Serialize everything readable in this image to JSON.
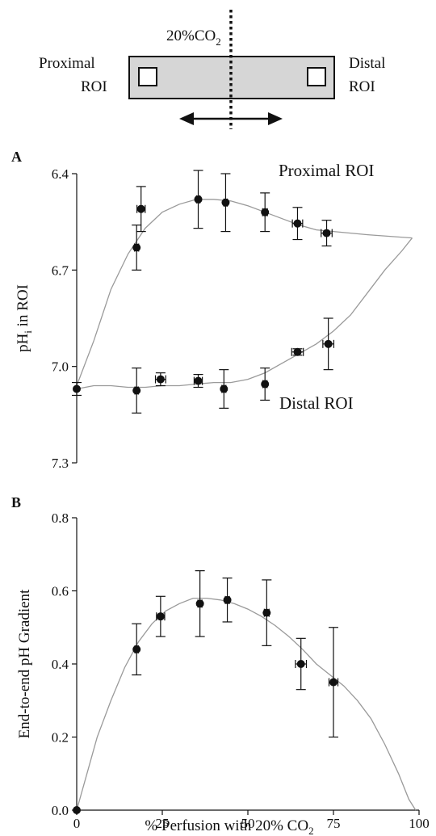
{
  "schematic": {
    "label_gas_main": "20%CO",
    "label_gas_sub": "2",
    "label_left_line1": "Proximal",
    "label_left_line2": "ROI",
    "label_right_line1": "Distal",
    "label_right_line2": "ROI"
  },
  "colors": {
    "curve": "#9a9a9a",
    "marker": "#111111",
    "chamber_fill": "#d6d6d6"
  },
  "chart_data": [
    {
      "panel": "A",
      "type": "scatter",
      "ylabel_main": "pH",
      "ylabel_sub": "i",
      "ylabel_rest": " in ROI",
      "ylim": [
        6.4,
        7.3
      ],
      "y_inverted": true,
      "xlim": [
        0,
        100
      ],
      "yticks": [
        6.4,
        6.7,
        7.0,
        7.3
      ],
      "ytick_labels": [
        "6.4",
        "6.7",
        "7.0",
        "7.3"
      ],
      "series": [
        {
          "name": "Proximal ROI",
          "points": [
            {
              "x": 17.5,
              "y": 6.63,
              "yerr": 0.07,
              "xerr": 0.6
            },
            {
              "x": 18.8,
              "y": 6.51,
              "yerr": 0.07,
              "xerr": 1.2
            },
            {
              "x": 35.5,
              "y": 6.48,
              "yerr": 0.09,
              "xerr": 0.5
            },
            {
              "x": 43.5,
              "y": 6.49,
              "yerr": 0.09,
              "xerr": 0.5
            },
            {
              "x": 55.0,
              "y": 6.52,
              "yerr": 0.06,
              "xerr": 0.7
            },
            {
              "x": 64.5,
              "y": 6.555,
              "yerr": 0.05,
              "xerr": 1.5
            },
            {
              "x": 73.0,
              "y": 6.585,
              "yerr": 0.04,
              "xerr": 1.6
            }
          ],
          "curve": [
            [
              0,
              7.06
            ],
            [
              5,
              6.92
            ],
            [
              10,
              6.76
            ],
            [
              15,
              6.65
            ],
            [
              20,
              6.57
            ],
            [
              25,
              6.52
            ],
            [
              30,
              6.495
            ],
            [
              35,
              6.48
            ],
            [
              40,
              6.48
            ],
            [
              45,
              6.485
            ],
            [
              50,
              6.5
            ],
            [
              55,
              6.52
            ],
            [
              60,
              6.54
            ],
            [
              65,
              6.56
            ],
            [
              70,
              6.575
            ],
            [
              75,
              6.58
            ],
            [
              85,
              6.59
            ],
            [
              98,
              6.6
            ]
          ]
        },
        {
          "name": "Distal ROI",
          "points": [
            {
              "x": 0.0,
              "y": 7.07,
              "yerr": 0.02,
              "xerr": 0.0
            },
            {
              "x": 17.5,
              "y": 7.075,
              "yerr": 0.07,
              "xerr": 0.5
            },
            {
              "x": 24.5,
              "y": 7.04,
              "yerr": 0.02,
              "xerr": 1.5
            },
            {
              "x": 35.5,
              "y": 7.045,
              "yerr": 0.02,
              "xerr": 1.2
            },
            {
              "x": 43.0,
              "y": 7.07,
              "yerr": 0.06,
              "xerr": 0.6
            },
            {
              "x": 55.0,
              "y": 7.055,
              "yerr": 0.05,
              "xerr": 0.6
            },
            {
              "x": 64.5,
              "y": 6.955,
              "yerr": 0.01,
              "xerr": 1.7
            },
            {
              "x": 73.5,
              "y": 6.93,
              "yerr": 0.08,
              "xerr": 1.6
            }
          ],
          "curve": [
            [
              0,
              7.07
            ],
            [
              5,
              7.06
            ],
            [
              10,
              7.06
            ],
            [
              15,
              7.065
            ],
            [
              20,
              7.065
            ],
            [
              25,
              7.06
            ],
            [
              30,
              7.06
            ],
            [
              35,
              7.055
            ],
            [
              40,
              7.05
            ],
            [
              45,
              7.05
            ],
            [
              50,
              7.04
            ],
            [
              55,
              7.02
            ],
            [
              60,
              6.99
            ],
            [
              65,
              6.96
            ],
            [
              70,
              6.93
            ],
            [
              75,
              6.89
            ],
            [
              80,
              6.84
            ],
            [
              85,
              6.77
            ],
            [
              90,
              6.7
            ],
            [
              95,
              6.64
            ],
            [
              98,
              6.6
            ]
          ]
        }
      ],
      "series_labels": [
        "Proximal ROI",
        "Distal ROI"
      ]
    },
    {
      "panel": "B",
      "type": "scatter",
      "xlabel_main": "% Perfusion with 20% CO",
      "xlabel_sub": "2",
      "ylabel": "End-to-end pH Gradient",
      "xlim": [
        0,
        100
      ],
      "ylim": [
        0.0,
        0.8
      ],
      "xticks": [
        0,
        25,
        50,
        75,
        100
      ],
      "xtick_labels": [
        "0",
        "25",
        "50",
        "75",
        "100"
      ],
      "yticks": [
        0.0,
        0.2,
        0.4,
        0.6,
        0.8
      ],
      "ytick_labels": [
        "0.0",
        "0.2",
        "0.4",
        "0.6",
        "0.8"
      ],
      "points": [
        {
          "x": 0.0,
          "y": 0.0,
          "yerr": 0.0,
          "xerr": 0.0
        },
        {
          "x": 17.5,
          "y": 0.44,
          "yerr": 0.07,
          "xerr": 0.5
        },
        {
          "x": 24.5,
          "y": 0.53,
          "yerr": 0.055,
          "xerr": 1.2
        },
        {
          "x": 36.0,
          "y": 0.565,
          "yerr": 0.09,
          "xerr": 0.6
        },
        {
          "x": 44.0,
          "y": 0.575,
          "yerr": 0.06,
          "xerr": 0.6
        },
        {
          "x": 55.5,
          "y": 0.54,
          "yerr": 0.09,
          "xerr": 0.7
        },
        {
          "x": 65.5,
          "y": 0.4,
          "yerr": 0.07,
          "xerr": 1.6
        },
        {
          "x": 75.0,
          "y": 0.35,
          "yerr": 0.15,
          "xerr": 1.3
        }
      ],
      "curve": [
        [
          0,
          0
        ],
        [
          3,
          0.1
        ],
        [
          6,
          0.2
        ],
        [
          10,
          0.3
        ],
        [
          14,
          0.39
        ],
        [
          18,
          0.46
        ],
        [
          22,
          0.51
        ],
        [
          26,
          0.545
        ],
        [
          30,
          0.565
        ],
        [
          34,
          0.58
        ],
        [
          38,
          0.58
        ],
        [
          42,
          0.575
        ],
        [
          46,
          0.565
        ],
        [
          50,
          0.55
        ],
        [
          54,
          0.53
        ],
        [
          58,
          0.505
        ],
        [
          62,
          0.475
        ],
        [
          66,
          0.44
        ],
        [
          70,
          0.4
        ],
        [
          74,
          0.37
        ],
        [
          78,
          0.34
        ],
        [
          82,
          0.3
        ],
        [
          86,
          0.25
        ],
        [
          90,
          0.18
        ],
        [
          94,
          0.1
        ],
        [
          97,
          0.03
        ],
        [
          99,
          0
        ]
      ]
    }
  ]
}
